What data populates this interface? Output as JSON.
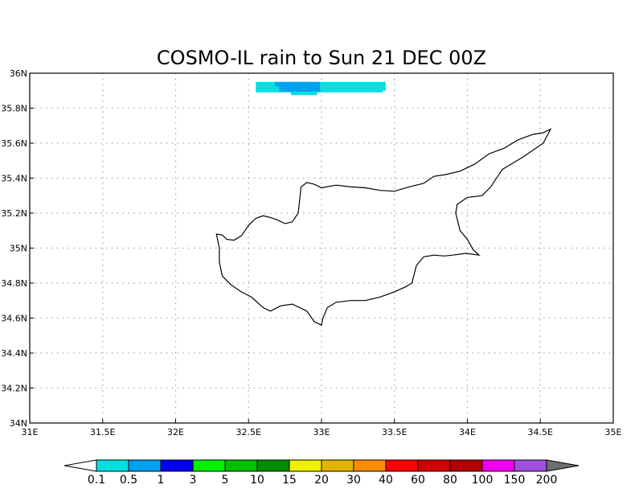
{
  "title": "COSMO-IL rain to Sun 21 DEC 00Z",
  "map": {
    "lon_range": [
      31,
      35
    ],
    "lat_range": [
      34,
      36
    ],
    "lon_ticks": [
      31,
      31.5,
      32,
      32.5,
      33,
      33.5,
      34,
      34.5,
      35
    ],
    "lon_labels": [
      "31E",
      "31.5E",
      "32E",
      "32.5E",
      "33E",
      "33.5E",
      "34E",
      "34.5E",
      "35E"
    ],
    "lat_ticks": [
      34,
      34.2,
      34.4,
      34.6,
      34.8,
      35,
      35.2,
      35.4,
      35.6,
      35.8,
      36
    ],
    "lat_labels": [
      "34N",
      "34.2N",
      "34.4N",
      "34.6N",
      "34.8N",
      "35N",
      "35.2N",
      "35.4N",
      "35.6N",
      "35.8N",
      "36N"
    ],
    "grid": true,
    "coastline_name": "Cyprus",
    "coastline": [
      [
        32.28,
        35.08
      ],
      [
        32.32,
        35.075
      ],
      [
        32.35,
        35.05
      ],
      [
        32.4,
        35.045
      ],
      [
        32.45,
        35.07
      ],
      [
        32.5,
        35.13
      ],
      [
        32.55,
        35.17
      ],
      [
        32.6,
        35.185
      ],
      [
        32.65,
        35.175
      ],
      [
        32.7,
        35.16
      ],
      [
        32.75,
        35.14
      ],
      [
        32.8,
        35.15
      ],
      [
        32.84,
        35.2
      ],
      [
        32.86,
        35.35
      ],
      [
        32.9,
        35.375
      ],
      [
        32.95,
        35.365
      ],
      [
        33.0,
        35.345
      ],
      [
        33.1,
        35.36
      ],
      [
        33.2,
        35.35
      ],
      [
        33.3,
        35.345
      ],
      [
        33.4,
        35.33
      ],
      [
        33.5,
        35.325
      ],
      [
        33.6,
        35.35
      ],
      [
        33.7,
        35.37
      ],
      [
        33.77,
        35.41
      ],
      [
        33.85,
        35.42
      ],
      [
        33.95,
        35.44
      ],
      [
        34.05,
        35.48
      ],
      [
        34.15,
        35.54
      ],
      [
        34.25,
        35.57
      ],
      [
        34.35,
        35.62
      ],
      [
        34.45,
        35.65
      ],
      [
        34.52,
        35.66
      ],
      [
        34.57,
        35.68
      ],
      [
        34.52,
        35.6
      ],
      [
        34.38,
        35.52
      ],
      [
        34.24,
        35.45
      ],
      [
        34.16,
        35.35
      ],
      [
        34.1,
        35.3
      ],
      [
        34.0,
        35.29
      ],
      [
        33.93,
        35.25
      ],
      [
        33.92,
        35.2
      ],
      [
        33.95,
        35.1
      ],
      [
        34.0,
        35.05
      ],
      [
        34.04,
        34.99
      ],
      [
        34.08,
        34.96
      ],
      [
        33.99,
        34.97
      ],
      [
        33.9,
        34.96
      ],
      [
        33.84,
        34.955
      ],
      [
        33.77,
        34.96
      ],
      [
        33.7,
        34.95
      ],
      [
        33.65,
        34.9
      ],
      [
        33.62,
        34.8
      ],
      [
        33.58,
        34.78
      ],
      [
        33.5,
        34.75
      ],
      [
        33.4,
        34.72
      ],
      [
        33.3,
        34.7
      ],
      [
        33.2,
        34.7
      ],
      [
        33.1,
        34.69
      ],
      [
        33.04,
        34.66
      ],
      [
        33.01,
        34.6
      ],
      [
        33.0,
        34.56
      ],
      [
        32.95,
        34.58
      ],
      [
        32.9,
        34.64
      ],
      [
        32.8,
        34.68
      ],
      [
        32.72,
        34.67
      ],
      [
        32.65,
        34.64
      ],
      [
        32.6,
        34.66
      ],
      [
        32.52,
        34.72
      ],
      [
        32.45,
        34.75
      ],
      [
        32.38,
        34.79
      ],
      [
        32.32,
        34.84
      ],
      [
        32.3,
        34.92
      ],
      [
        32.3,
        35.0
      ],
      [
        32.28,
        35.08
      ]
    ],
    "rain_cells": [
      {
        "lon_min": 32.55,
        "lon_max": 33.44,
        "lat_min": 35.9,
        "lat_max": 35.95,
        "level": 0
      },
      {
        "lon_min": 32.55,
        "lon_max": 33.42,
        "lat_min": 35.89,
        "lat_max": 35.91,
        "level": 0
      },
      {
        "lon_min": 32.79,
        "lon_max": 32.97,
        "lat_min": 35.875,
        "lat_max": 35.895,
        "level": 0
      },
      {
        "lon_min": 32.68,
        "lon_max": 32.99,
        "lat_min": 35.925,
        "lat_max": 35.95,
        "level": 1
      },
      {
        "lon_min": 32.71,
        "lon_max": 32.99,
        "lat_min": 35.895,
        "lat_max": 35.925,
        "level": 1
      }
    ]
  },
  "colorbar": {
    "labels": [
      "0.1",
      "0.5",
      "1",
      "3",
      "5",
      "10",
      "15",
      "20",
      "30",
      "40",
      "60",
      "80",
      "100",
      "150",
      "200"
    ],
    "colors": [
      "#00e0e0",
      "#00a0f0",
      "#0000f0",
      "#00f000",
      "#00c000",
      "#008c00",
      "#f0f000",
      "#e0b400",
      "#ff8c00",
      "#ff0000",
      "#d20000",
      "#b40000",
      "#f000f0",
      "#a050dc"
    ],
    "under_color": "#ffffff",
    "over_color": "#6e6e6e"
  }
}
